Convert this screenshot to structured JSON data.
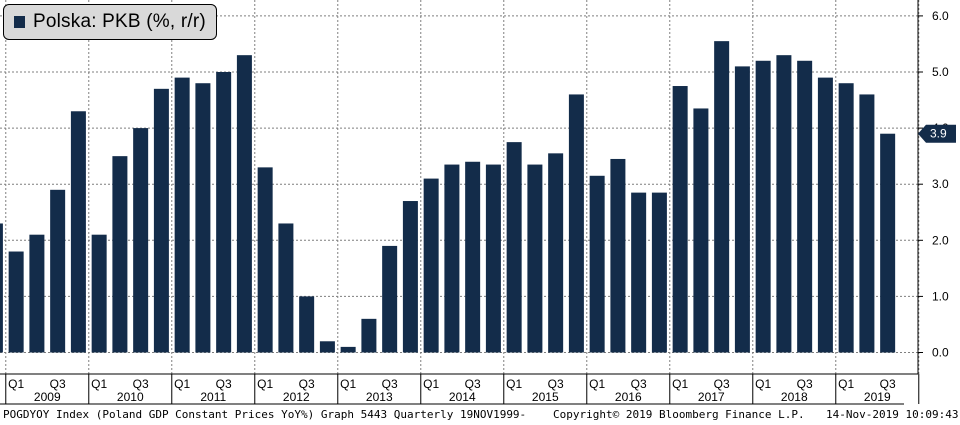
{
  "legend": {
    "label": "Polska: PKB (%, r/r)"
  },
  "footer": {
    "left": "POGDYOY Index (Poland GDP Constant Prices YoY%) Graph 5443  Quarterly 19NOV1999-",
    "middle": "Copyright© 2019 Bloomberg Finance L.P.",
    "right": "14-Nov-2019 10:09:43"
  },
  "colors": {
    "bar": "#132c4a",
    "grid": "#7f7f7f",
    "background": "#ffffff",
    "axis": "#000000"
  },
  "chart_data": {
    "type": "bar",
    "title": "Polska: PKB (%, r/r)",
    "xlabel": "",
    "ylabel": "",
    "ylim": [
      -0.4,
      6.3
    ],
    "yticks": [
      "0.0",
      "1.0",
      "2.0",
      "3.0",
      "4.0",
      "5.0",
      "6.0"
    ],
    "y_axis_side": "right",
    "grid": true,
    "legend_position": "top-left",
    "last_value_label": "3.9",
    "quarter_tick_labels": [
      "Q1",
      "Q3"
    ],
    "categories": [
      "2008 Q4",
      "2009 Q1",
      "2009 Q2",
      "2009 Q3",
      "2009 Q4",
      "2010 Q1",
      "2010 Q2",
      "2010 Q3",
      "2010 Q4",
      "2011 Q1",
      "2011 Q2",
      "2011 Q3",
      "2011 Q4",
      "2012 Q1",
      "2012 Q2",
      "2012 Q3",
      "2012 Q4",
      "2013 Q1",
      "2013 Q2",
      "2013 Q3",
      "2013 Q4",
      "2014 Q1",
      "2014 Q2",
      "2014 Q3",
      "2014 Q4",
      "2015 Q1",
      "2015 Q2",
      "2015 Q3",
      "2015 Q4",
      "2016 Q1",
      "2016 Q2",
      "2016 Q3",
      "2016 Q4",
      "2017 Q1",
      "2017 Q2",
      "2017 Q3",
      "2017 Q4",
      "2018 Q1",
      "2018 Q2",
      "2018 Q3",
      "2018 Q4",
      "2019 Q1",
      "2019 Q2",
      "2019 Q3"
    ],
    "years": [
      "2009",
      "2010",
      "2011",
      "2012",
      "2013",
      "2014",
      "2015",
      "2016",
      "2017",
      "2018",
      "2019"
    ],
    "series": [
      {
        "name": "Polska: PKB (%, r/r)",
        "values": [
          2.3,
          1.8,
          2.1,
          2.9,
          4.3,
          2.1,
          3.5,
          4.0,
          4.7,
          4.9,
          4.8,
          5.0,
          5.3,
          3.3,
          2.3,
          1.0,
          0.2,
          0.1,
          0.6,
          1.9,
          2.7,
          3.1,
          3.35,
          3.4,
          3.35,
          3.75,
          3.35,
          3.55,
          4.6,
          3.15,
          3.45,
          2.85,
          2.85,
          4.75,
          4.35,
          5.55,
          5.1,
          5.2,
          5.3,
          5.2,
          4.9,
          4.8,
          4.6,
          3.9
        ]
      }
    ]
  }
}
